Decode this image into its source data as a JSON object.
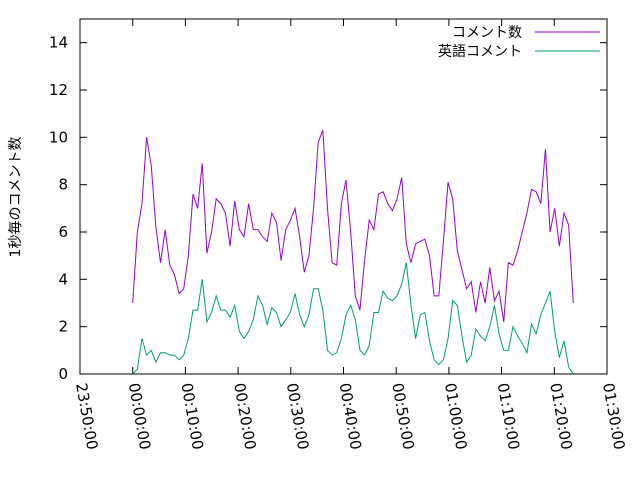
{
  "chart_data": {
    "type": "line",
    "y_label": "1秒毎のコメント数",
    "x": [
      0,
      0.88,
      1.76,
      2.64,
      3.52,
      4.4,
      5.28,
      6.16,
      7.04,
      7.92,
      8.8,
      9.68,
      10.56,
      11.44,
      12.32,
      13.2,
      14.08,
      14.96,
      15.84,
      16.72,
      17.6,
      18.48,
      19.36,
      20.24,
      21.12,
      22,
      22.88,
      23.76,
      24.64,
      25.52,
      26.4,
      27.28,
      28.16,
      29.04,
      29.92,
      30.8,
      31.68,
      32.56,
      33.44,
      34.32,
      35.2,
      36.08,
      36.96,
      37.84,
      38.72,
      39.6,
      40.48,
      41.36,
      42.24,
      43.12,
      44,
      44.88,
      45.76,
      46.64,
      47.52,
      48.4,
      49.28,
      50.16,
      51.04,
      51.92,
      52.8,
      53.68,
      54.56,
      55.44,
      56.32,
      57.2,
      58.08,
      58.96,
      59.84,
      60.72,
      61.6,
      62.48,
      63.36,
      64.24,
      65.12,
      66,
      66.88,
      67.76,
      68.64,
      69.52,
      70.4,
      71.28,
      72.16,
      73.04,
      73.92,
      74.8,
      75.68,
      76.56,
      77.44,
      78.32,
      79.2,
      80.08,
      80.96,
      81.84,
      82.72,
      83.6
    ],
    "series": [
      {
        "name": "コメント数",
        "color": "#9400d3",
        "values": [
          3.0,
          6.0,
          7.2,
          10.0,
          8.8,
          6.2,
          4.7,
          6.1,
          4.6,
          4.2,
          3.4,
          3.6,
          5.0,
          7.6,
          7.0,
          8.9,
          5.1,
          6.0,
          7.4,
          7.2,
          6.8,
          5.4,
          7.3,
          6.1,
          5.8,
          7.2,
          6.1,
          6.1,
          5.8,
          5.6,
          6.8,
          6.4,
          4.8,
          6.1,
          6.5,
          7.0,
          5.8,
          4.3,
          5.0,
          7.0,
          9.8,
          10.3,
          7.0,
          4.7,
          4.6,
          7.2,
          8.2,
          6.0,
          3.3,
          2.7,
          4.8,
          6.5,
          6.1,
          7.6,
          7.7,
          7.2,
          6.9,
          7.4,
          8.3,
          5.5,
          4.7,
          5.5,
          5.6,
          5.7,
          5.0,
          3.3,
          3.3,
          5.6,
          8.1,
          7.4,
          5.2,
          4.4,
          3.6,
          3.9,
          2.6,
          3.9,
          3.0,
          4.5,
          3.1,
          3.5,
          2.2,
          4.7,
          4.6,
          5.2,
          6.0,
          6.8,
          7.8,
          7.7,
          7.2,
          9.5,
          6.0,
          7.0,
          5.4,
          6.8,
          6.3,
          3.0
        ]
      },
      {
        "name": "英語コメント",
        "color": "#009e73",
        "values": [
          0.0,
          0.2,
          1.5,
          0.8,
          1.0,
          0.5,
          0.9,
          0.9,
          0.8,
          0.8,
          0.6,
          0.8,
          1.5,
          2.7,
          2.7,
          4.0,
          2.2,
          2.6,
          3.3,
          2.7,
          2.7,
          2.4,
          2.9,
          1.8,
          1.5,
          1.8,
          2.3,
          3.3,
          2.9,
          2.1,
          2.8,
          2.6,
          2.0,
          2.3,
          2.6,
          3.4,
          2.5,
          2.0,
          2.5,
          3.6,
          3.6,
          2.7,
          1.0,
          0.8,
          0.9,
          1.5,
          2.5,
          2.9,
          2.3,
          1.0,
          0.8,
          1.2,
          2.6,
          2.6,
          3.5,
          3.2,
          3.1,
          3.3,
          3.8,
          4.7,
          2.9,
          1.5,
          2.5,
          2.6,
          1.4,
          0.6,
          0.4,
          0.6,
          1.5,
          3.1,
          2.9,
          1.6,
          0.5,
          0.8,
          1.9,
          1.6,
          1.4,
          2.0,
          2.9,
          1.7,
          1.0,
          1.0,
          2.0,
          1.6,
          1.3,
          0.9,
          2.1,
          1.7,
          2.5,
          3.0,
          3.5,
          1.8,
          0.7,
          1.4,
          0.3,
          0.0
        ]
      }
    ],
    "xlim": [
      -10,
      90
    ],
    "xticks": [
      {
        "value": -10,
        "label": "23:50:00"
      },
      {
        "value": 0,
        "label": "00:00:00"
      },
      {
        "value": 10,
        "label": "00:10:00"
      },
      {
        "value": 20,
        "label": "00:20:00"
      },
      {
        "value": 30,
        "label": "00:30:00"
      },
      {
        "value": 40,
        "label": "00:40:00"
      },
      {
        "value": 50,
        "label": "00:50:00"
      },
      {
        "value": 60,
        "label": "01:00:00"
      },
      {
        "value": 70,
        "label": "01:10:00"
      },
      {
        "value": 80,
        "label": "01:20:00"
      },
      {
        "value": 90,
        "label": "01:30:00"
      }
    ],
    "ylim": [
      0,
      15
    ],
    "yticks": [
      0,
      2,
      4,
      6,
      8,
      10,
      12,
      14
    ],
    "legend": "top-right",
    "grid": false
  }
}
